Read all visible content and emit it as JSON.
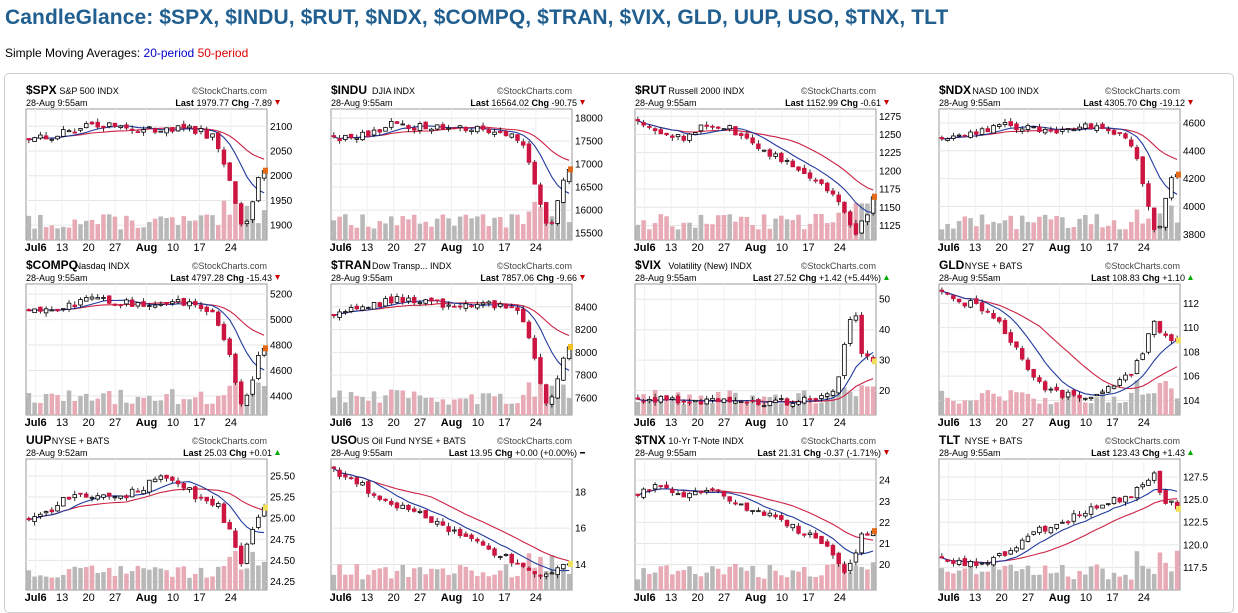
{
  "page": {
    "title": "CandleGlance: $SPX, $INDU, $RUT, $NDX, $COMPQ, $TRAN, $VIX, GLD, UUP, USO, $TNX, TLT",
    "subtitle_prefix": "Simple Moving Averages: ",
    "sma20_label": "20-period",
    "sma50_label": "50-period"
  },
  "colors": {
    "title": "#205f8f",
    "up_candle": "#ffffff",
    "down_candle": "#cc1540",
    "sma20": "#1f3a9e",
    "sma50": "#cc2244",
    "volume_up": "#b8b8b8",
    "volume_down": "#e8aab5",
    "grid": "#e6e6e6",
    "change_up": "#00aa00",
    "change_down": "#cc0000"
  },
  "chart_data": [
    {
      "type": "candlestick",
      "symbol": "$SPX",
      "name": "S&P 500",
      "exchange": "INDX",
      "watermark": "StockCharts.com",
      "date": "28-Aug 9:55am",
      "last_label": "Last",
      "last": "1979.77",
      "chg_label": "Chg",
      "chg": "-7.89",
      "direction": "down",
      "x_labels": [
        "Jul6",
        "13",
        "20",
        "27",
        "Aug",
        "10",
        "17",
        "24"
      ],
      "y_ticks": [
        "2100",
        "2050",
        "2000",
        "1950",
        "1900"
      ],
      "ylim": [
        1870,
        2135
      ],
      "end_marker": "#e36a1a",
      "profile": "crash"
    },
    {
      "type": "candlestick",
      "symbol": "$INDU",
      "name": "DJIA",
      "exchange": "INDX",
      "watermark": "StockCharts.com",
      "date": "28-Aug 9:55am",
      "last_label": "Last",
      "last": "16564.02",
      "chg_label": "Chg",
      "chg": "-90.75",
      "direction": "down",
      "x_labels": [
        "Jul6",
        "13",
        "20",
        "27",
        "Aug",
        "10",
        "17",
        "24"
      ],
      "y_ticks": [
        "18000",
        "17500",
        "17000",
        "16500",
        "16000",
        "15500"
      ],
      "ylim": [
        15350,
        18200
      ],
      "end_marker": "#e36a1a",
      "profile": "crash"
    },
    {
      "type": "candlestick",
      "symbol": "$RUT",
      "name": "Russell 2000",
      "exchange": "INDX",
      "watermark": "StockCharts.com",
      "date": "28-Aug 9:55am",
      "last_label": "Last",
      "last": "1152.99",
      "chg_label": "Chg",
      "chg": "-0.61",
      "direction": "down",
      "x_labels": [
        "Jul6",
        "13",
        "20",
        "27",
        "Aug",
        "10",
        "17",
        "24"
      ],
      "y_ticks": [
        "1275",
        "1250",
        "1225",
        "1200",
        "1175",
        "1150",
        "1125"
      ],
      "ylim": [
        1105,
        1285
      ],
      "end_marker": "#e36a1a",
      "profile": "slide"
    },
    {
      "type": "candlestick",
      "symbol": "$NDX",
      "name": "NASD 100",
      "exchange": "INDX",
      "watermark": "StockCharts.com",
      "date": "28-Aug 9:55am",
      "last_label": "Last",
      "last": "4305.70",
      "chg_label": "Chg",
      "chg": "-19.12",
      "direction": "down",
      "x_labels": [
        "Jul6",
        "13",
        "20",
        "27",
        "Aug",
        "10",
        "17",
        "24"
      ],
      "y_ticks": [
        "4600",
        "4400",
        "4200",
        "4000",
        "3800"
      ],
      "ylim": [
        3760,
        4700
      ],
      "end_marker": "#e36a1a",
      "profile": "crash"
    },
    {
      "type": "candlestick",
      "symbol": "$COMPQ",
      "name": "Nasdaq",
      "exchange": "INDX",
      "watermark": "StockCharts.com",
      "date": "28-Aug 9:55am",
      "last_label": "Last",
      "last": "4797.28",
      "chg_label": "Chg",
      "chg": "-15.43",
      "direction": "down",
      "x_labels": [
        "Jul6",
        "13",
        "20",
        "27",
        "Aug",
        "10",
        "17",
        "24"
      ],
      "y_ticks": [
        "5200",
        "5000",
        "4800",
        "4600",
        "4400"
      ],
      "ylim": [
        4250,
        5280
      ],
      "end_marker": "#e36a1a",
      "profile": "crash"
    },
    {
      "type": "candlestick",
      "symbol": "$TRAN",
      "name": "Dow Transp...",
      "exchange": "INDX",
      "watermark": "StockCharts.com",
      "date": "28-Aug 9:55am",
      "last_label": "Last",
      "last": "7857.06",
      "chg_label": "Chg",
      "chg": "-9.66",
      "direction": "down",
      "x_labels": [
        "Jul6",
        "13",
        "20",
        "27",
        "Aug",
        "10",
        "17",
        "24"
      ],
      "y_ticks": [
        "8400",
        "8200",
        "8000",
        "7800",
        "7600"
      ],
      "ylim": [
        7450,
        8600
      ],
      "end_marker": "#f0c020",
      "profile": "crash"
    },
    {
      "type": "candlestick",
      "symbol": "$VIX",
      "name": "Volatility (New)",
      "exchange": "INDX",
      "watermark": "StockCharts.com",
      "date": "28-Aug 9:55am",
      "last_label": "Last",
      "last": "27.52",
      "chg_label": "Chg",
      "chg": "+1.42 (+5.44%)",
      "direction": "up",
      "x_labels": [
        "Jul6",
        "13",
        "20",
        "27",
        "Aug",
        "10",
        "17",
        "24"
      ],
      "y_ticks": [
        "50",
        "40",
        "30",
        "20"
      ],
      "ylim": [
        12,
        55
      ],
      "end_marker": "#f0e060",
      "profile": "spike"
    },
    {
      "type": "candlestick",
      "symbol": "GLD",
      "name": "",
      "exchange": "NYSE + BATS",
      "watermark": "StockCharts.com",
      "date": "28-Aug 9:55am",
      "last_label": "Last",
      "last": "108.83",
      "chg_label": "Chg",
      "chg": "+1.10",
      "direction": "up",
      "x_labels": [
        "Jul6",
        "13",
        "20",
        "27",
        "Aug",
        "10",
        "17",
        "24"
      ],
      "y_ticks": [
        "112",
        "110",
        "108",
        "106",
        "104"
      ],
      "ylim": [
        102.8,
        113.6
      ],
      "end_marker": "#f0e060",
      "profile": "vshape"
    },
    {
      "type": "candlestick",
      "symbol": "UUP",
      "name": "",
      "exchange": "NYSE + BATS",
      "watermark": "StockCharts.com",
      "date": "28-Aug 9:52am",
      "last_label": "Last",
      "last": "25.03",
      "chg_label": "Chg",
      "chg": "+0.01",
      "direction": "up",
      "x_labels": [
        "Jul6",
        "13",
        "20",
        "27",
        "Aug",
        "10",
        "17",
        "24"
      ],
      "y_ticks": [
        "25.50",
        "25.25",
        "25.00",
        "24.75",
        "24.50",
        "24.25"
      ],
      "ylim": [
        24.15,
        25.7
      ],
      "end_marker": "#f0e060",
      "profile": "hump"
    },
    {
      "type": "candlestick",
      "symbol": "USO",
      "name": "US Oil Fund",
      "exchange": "NYSE + BATS",
      "watermark": "StockCharts.com",
      "date": "28-Aug 9:55am",
      "last_label": "Last",
      "last": "13.95",
      "chg_label": "Chg",
      "chg": "+0.00 (+0.00%)",
      "direction": "flat",
      "x_labels": [
        "Jul6",
        "13",
        "20",
        "27",
        "Aug",
        "10",
        "17",
        "24"
      ],
      "y_ticks": [
        "18",
        "16",
        "14"
      ],
      "ylim": [
        12.6,
        19.8
      ],
      "end_marker": "#f0e060",
      "profile": "decline"
    },
    {
      "type": "candlestick",
      "symbol": "$TNX",
      "name": "10-Yr T-Note",
      "exchange": "INDX",
      "watermark": "StockCharts.com",
      "date": "28-Aug 9:55am",
      "last_label": "Last",
      "last": "21.31",
      "chg_label": "Chg",
      "chg": "-0.37 (-1.71%)",
      "direction": "down",
      "x_labels": [
        "Jul6",
        "13",
        "20",
        "27",
        "Aug",
        "10",
        "17",
        "24"
      ],
      "y_ticks": [
        "24",
        "23",
        "22",
        "21",
        "20"
      ],
      "ylim": [
        18.8,
        25
      ],
      "end_marker": "#e36a1a",
      "profile": "slide2"
    },
    {
      "type": "candlestick",
      "symbol": "TLT",
      "name": "",
      "exchange": "NYSE + BATS",
      "watermark": "StockCharts.com",
      "date": "28-Aug 9:55am",
      "last_label": "Last",
      "last": "123.43",
      "chg_label": "Chg",
      "chg": "+1.43",
      "direction": "up",
      "x_labels": [
        "Jul6",
        "13",
        "20",
        "27",
        "Aug",
        "10",
        "17",
        "24"
      ],
      "y_ticks": [
        "127.5",
        "125.0",
        "122.5",
        "120.0",
        "117.5"
      ],
      "ylim": [
        115,
        129.5
      ],
      "end_marker": "#f0e060",
      "profile": "rise"
    }
  ]
}
